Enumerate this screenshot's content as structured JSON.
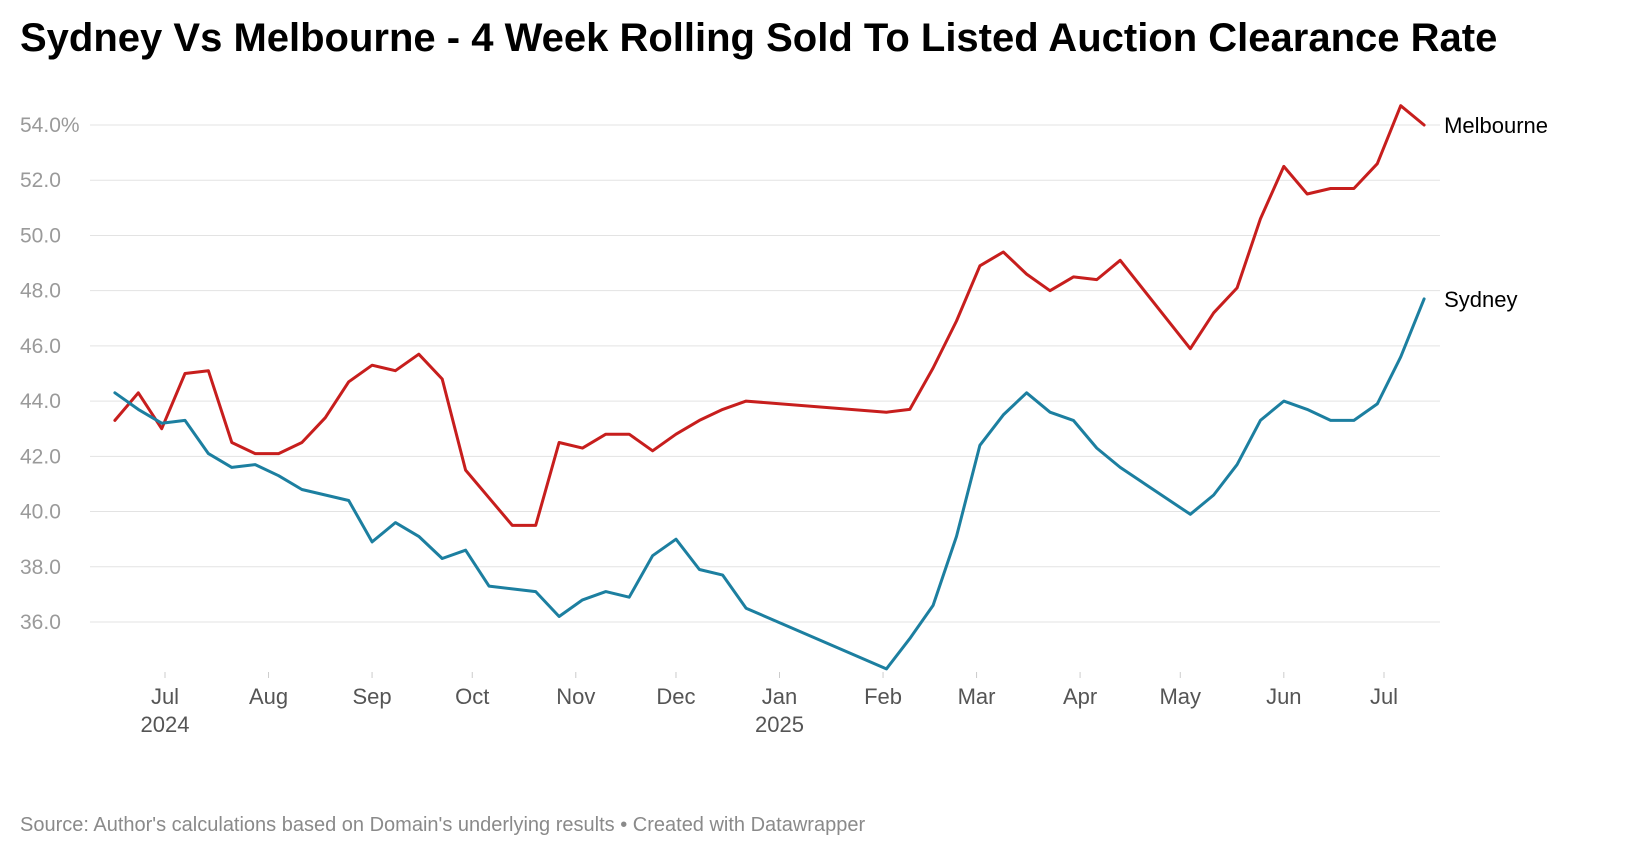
{
  "title": "Sydney Vs Melbourne - 4 Week Rolling Sold To Listed Auction Clearance Rate",
  "footer": {
    "source": "Source: Author's calculations based on Domain's underlying results",
    "separator": "•",
    "credit": "Created with Datawrapper"
  },
  "chart_data": {
    "type": "line",
    "title": "Sydney Vs Melbourne - 4 Week Rolling Sold To Listed Auction Clearance Rate",
    "xlabel": "",
    "ylabel": "",
    "ylim": [
      34.3,
      54.8
    ],
    "grid": true,
    "legend": "direct labels at line ends",
    "y_ticks": [
      {
        "value": 54,
        "label": "54.0%"
      },
      {
        "value": 52,
        "label": "52.0"
      },
      {
        "value": 50,
        "label": "50.0"
      },
      {
        "value": 48,
        "label": "48.0"
      },
      {
        "value": 46,
        "label": "46.0"
      },
      {
        "value": 44,
        "label": "44.0"
      },
      {
        "value": 42,
        "label": "42.0"
      },
      {
        "value": 40,
        "label": "40.0"
      },
      {
        "value": 38,
        "label": "38.0"
      },
      {
        "value": 36,
        "label": "36.0"
      }
    ],
    "x_ticks": [
      {
        "date": "2024-07-01",
        "label": "Jul",
        "year": "2024"
      },
      {
        "date": "2024-08-01",
        "label": "Aug",
        "year": ""
      },
      {
        "date": "2024-09-01",
        "label": "Sep",
        "year": ""
      },
      {
        "date": "2024-10-01",
        "label": "Oct",
        "year": ""
      },
      {
        "date": "2024-11-01",
        "label": "Nov",
        "year": ""
      },
      {
        "date": "2024-12-01",
        "label": "Dec",
        "year": ""
      },
      {
        "date": "2025-01-01",
        "label": "Jan",
        "year": "2025"
      },
      {
        "date": "2025-02-01",
        "label": "Feb",
        "year": ""
      },
      {
        "date": "2025-03-01",
        "label": "Mar",
        "year": ""
      },
      {
        "date": "2025-04-01",
        "label": "Apr",
        "year": ""
      },
      {
        "date": "2025-05-01",
        "label": "May",
        "year": ""
      },
      {
        "date": "2025-06-01",
        "label": "Jun",
        "year": ""
      },
      {
        "date": "2025-07-01",
        "label": "Jul",
        "year": ""
      }
    ],
    "x": [
      "2024-06-16",
      "2024-06-23",
      "2024-06-30",
      "2024-07-07",
      "2024-07-14",
      "2024-07-21",
      "2024-07-28",
      "2024-08-04",
      "2024-08-11",
      "2024-08-18",
      "2024-08-25",
      "2024-09-01",
      "2024-09-08",
      "2024-09-15",
      "2024-09-22",
      "2024-09-29",
      "2024-10-06",
      "2024-10-13",
      "2024-10-20",
      "2024-10-27",
      "2024-11-03",
      "2024-11-10",
      "2024-11-17",
      "2024-11-24",
      "2024-12-01",
      "2024-12-08",
      "2024-12-15",
      "2024-12-22",
      "2025-02-02",
      "2025-02-09",
      "2025-02-16",
      "2025-02-23",
      "2025-03-02",
      "2025-03-09",
      "2025-03-16",
      "2025-03-23",
      "2025-03-30",
      "2025-04-06",
      "2025-04-13",
      "2025-05-04",
      "2025-05-11",
      "2025-05-18",
      "2025-05-25",
      "2025-06-01",
      "2025-06-08",
      "2025-06-15",
      "2025-06-22",
      "2025-06-29",
      "2025-07-06",
      "2025-07-13"
    ],
    "series": [
      {
        "name": "Melbourne",
        "color": "#c71e1d",
        "values": [
          43.3,
          44.3,
          43.0,
          45.0,
          45.1,
          42.5,
          42.1,
          42.1,
          42.5,
          43.4,
          44.7,
          45.3,
          45.1,
          45.7,
          44.8,
          41.5,
          40.5,
          39.5,
          39.5,
          42.5,
          42.3,
          42.8,
          42.8,
          42.2,
          42.8,
          43.3,
          43.7,
          44.0,
          43.6,
          43.7,
          45.2,
          46.9,
          48.9,
          49.4,
          48.6,
          48.0,
          48.5,
          48.4,
          49.1,
          45.9,
          47.2,
          48.1,
          50.6,
          52.5,
          51.5,
          51.7,
          51.7,
          52.6,
          54.7,
          54.0
        ]
      },
      {
        "name": "Sydney",
        "color": "#1c7fa0",
        "values": [
          44.3,
          43.7,
          43.2,
          43.3,
          42.1,
          41.6,
          41.7,
          41.3,
          40.8,
          40.6,
          40.4,
          38.9,
          39.6,
          39.1,
          38.3,
          38.6,
          37.3,
          37.2,
          37.1,
          36.2,
          36.8,
          37.1,
          36.9,
          38.4,
          39.0,
          37.9,
          37.7,
          36.5,
          34.3,
          35.4,
          36.6,
          39.1,
          42.4,
          43.5,
          44.3,
          43.6,
          43.3,
          42.3,
          41.6,
          39.9,
          40.6,
          41.7,
          43.3,
          44.0,
          43.7,
          43.3,
          43.3,
          43.9,
          45.6,
          47.7
        ]
      }
    ]
  }
}
